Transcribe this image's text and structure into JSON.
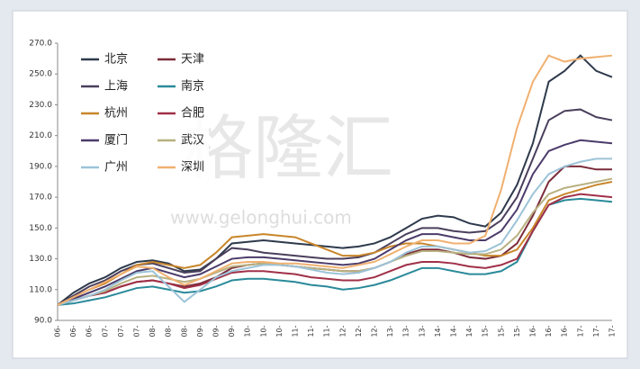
{
  "chart_data": {
    "type": "line",
    "watermark": "格隆汇",
    "watermark_url": "www.gelonghui.com",
    "categories": [
      "06-",
      "06-",
      "06-",
      "07-",
      "07-",
      "07-",
      "08-",
      "08-",
      "08-",
      "09-",
      "09-",
      "09-",
      "10-",
      "10-",
      "10-",
      "11-",
      "11-",
      "11-",
      "12-",
      "12-",
      "12-",
      "13-",
      "13-",
      "13-",
      "14-",
      "14-",
      "14-",
      "15-",
      "15-",
      "15-",
      "16-",
      "16-",
      "16-",
      "17-",
      "17-",
      "17-"
    ],
    "ylim": [
      90,
      270
    ],
    "yticks": [
      {
        "value": 90,
        "label": "90.0"
      },
      {
        "value": 110,
        "label": "110.0"
      },
      {
        "value": 130,
        "label": "130.0"
      },
      {
        "value": 150,
        "label": "150.0"
      },
      {
        "value": 170,
        "label": "170.0"
      },
      {
        "value": 190,
        "label": "190.0"
      },
      {
        "value": 210,
        "label": "210.0"
      },
      {
        "value": 230,
        "label": "230.0"
      },
      {
        "value": 250,
        "label": "250.0"
      },
      {
        "value": 270,
        "label": "270.0"
      }
    ],
    "series": [
      {
        "name": "北京",
        "color": "#2e3a4c",
        "values": [
          100,
          108,
          114,
          118,
          124,
          128,
          129,
          127,
          122,
          123,
          130,
          140,
          141,
          142,
          141,
          140,
          139,
          138,
          137,
          138,
          140,
          144,
          150,
          156,
          158,
          157,
          153,
          151,
          160,
          178,
          205,
          245,
          252,
          262,
          252,
          248
        ]
      },
      {
        "name": "天津",
        "color": "#7b2c3a",
        "values": [
          100,
          103,
          106,
          108,
          112,
          115,
          116,
          114,
          112,
          114,
          118,
          124,
          126,
          127,
          126,
          125,
          124,
          123,
          122,
          122,
          124,
          128,
          133,
          136,
          136,
          134,
          131,
          130,
          132,
          140,
          158,
          180,
          190,
          190,
          188,
          188
        ]
      },
      {
        "name": "上海",
        "color": "#4a3f5c",
        "values": [
          100,
          106,
          112,
          116,
          122,
          126,
          127,
          124,
          121,
          122,
          130,
          137,
          136,
          134,
          133,
          132,
          131,
          130,
          130,
          131,
          134,
          140,
          146,
          150,
          150,
          148,
          147,
          148,
          155,
          170,
          195,
          220,
          226,
          227,
          222,
          220
        ]
      },
      {
        "name": "南京",
        "color": "#2a8a9a",
        "values": [
          100,
          101,
          103,
          105,
          108,
          111,
          112,
          110,
          108,
          109,
          112,
          116,
          117,
          117,
          116,
          115,
          113,
          112,
          110,
          111,
          113,
          116,
          120,
          124,
          124,
          122,
          120,
          120,
          122,
          128,
          148,
          165,
          168,
          169,
          168,
          167
        ]
      },
      {
        "name": "杭州",
        "color": "#c8862a",
        "values": [
          100,
          105,
          110,
          114,
          120,
          126,
          128,
          126,
          124,
          126,
          134,
          144,
          145,
          146,
          145,
          144,
          140,
          136,
          132,
          132,
          134,
          138,
          140,
          140,
          138,
          136,
          134,
          132,
          132,
          136,
          150,
          168,
          172,
          175,
          178,
          180
        ]
      },
      {
        "name": "合肥",
        "color": "#a03048",
        "values": [
          100,
          103,
          106,
          108,
          112,
          115,
          116,
          114,
          111,
          113,
          117,
          121,
          122,
          122,
          121,
          120,
          118,
          117,
          116,
          116,
          118,
          122,
          126,
          128,
          128,
          127,
          125,
          124,
          126,
          130,
          148,
          165,
          170,
          172,
          171,
          170
        ]
      },
      {
        "name": "厦门",
        "color": "#4b3b6b",
        "values": [
          100,
          104,
          108,
          112,
          117,
          122,
          124,
          121,
          118,
          120,
          125,
          130,
          131,
          131,
          130,
          129,
          128,
          127,
          126,
          127,
          130,
          136,
          142,
          146,
          146,
          144,
          142,
          142,
          148,
          162,
          185,
          200,
          204,
          207,
          206,
          205
        ]
      },
      {
        "name": "武汉",
        "color": "#b8b080",
        "values": [
          100,
          103,
          106,
          109,
          114,
          118,
          119,
          117,
          115,
          117,
          121,
          125,
          126,
          127,
          126,
          125,
          124,
          123,
          122,
          122,
          124,
          128,
          132,
          135,
          135,
          134,
          133,
          133,
          136,
          145,
          160,
          172,
          176,
          178,
          180,
          182
        ]
      },
      {
        "name": "广州",
        "color": "#9cc3d8",
        "values": [
          100,
          103,
          106,
          110,
          116,
          121,
          122,
          112,
          102,
          110,
          118,
          122,
          124,
          126,
          126,
          125,
          123,
          121,
          120,
          121,
          124,
          128,
          134,
          138,
          138,
          136,
          134,
          135,
          140,
          155,
          172,
          185,
          190,
          193,
          195,
          195
        ]
      },
      {
        "name": "深圳",
        "color": "#f0b070",
        "values": [
          100,
          105,
          110,
          115,
          120,
          125,
          124,
          118,
          113,
          117,
          122,
          127,
          128,
          128,
          127,
          127,
          126,
          125,
          124,
          126,
          128,
          133,
          138,
          142,
          142,
          140,
          140,
          145,
          175,
          215,
          245,
          262,
          258,
          260,
          261,
          262
        ]
      }
    ]
  }
}
